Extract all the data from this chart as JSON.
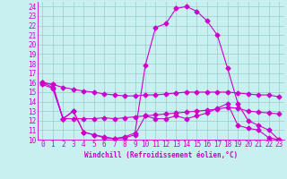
{
  "xlabel": "Windchill (Refroidissement éolien,°C)",
  "xlim": [
    -0.5,
    23.5
  ],
  "ylim": [
    10,
    24.5
  ],
  "yticks": [
    10,
    11,
    12,
    13,
    14,
    15,
    16,
    17,
    18,
    19,
    20,
    21,
    22,
    23,
    24
  ],
  "xticks": [
    0,
    1,
    2,
    3,
    4,
    5,
    6,
    7,
    8,
    9,
    10,
    11,
    12,
    13,
    14,
    15,
    16,
    17,
    18,
    19,
    20,
    21,
    22,
    23
  ],
  "bg_color": "#c8f0f0",
  "line_color": "#cc00cc",
  "grid_color": "#99cccc",
  "line1_x": [
    0,
    1,
    2,
    3,
    4,
    5,
    6,
    7,
    8,
    9,
    10,
    11,
    12,
    13,
    14,
    15,
    16,
    17,
    18,
    19,
    20,
    21,
    22,
    23
  ],
  "line1_y": [
    16.0,
    15.5,
    12.2,
    13.0,
    10.8,
    10.5,
    10.2,
    10.1,
    10.2,
    10.5,
    12.5,
    12.2,
    12.2,
    12.5,
    12.2,
    12.5,
    12.8,
    13.3,
    13.8,
    11.5,
    11.2,
    11.0,
    10.2,
    10.0
  ],
  "line2_x": [
    0,
    1,
    2,
    3,
    4,
    5,
    6,
    7,
    8,
    9,
    10,
    11,
    12,
    13,
    14,
    15,
    16,
    17,
    18,
    19,
    20,
    21,
    22,
    23
  ],
  "line2_y": [
    15.8,
    15.4,
    12.2,
    12.2,
    12.2,
    12.2,
    12.3,
    12.2,
    12.3,
    12.4,
    12.5,
    12.6,
    12.7,
    12.8,
    12.9,
    13.0,
    13.1,
    13.2,
    13.4,
    13.3,
    13.0,
    12.9,
    12.8,
    12.7
  ],
  "line3_x": [
    0,
    1,
    2,
    3,
    4,
    5,
    6,
    7,
    8,
    9,
    10,
    11,
    12,
    13,
    14,
    15,
    16,
    17,
    18,
    19,
    20,
    21,
    22,
    23
  ],
  "line3_y": [
    16.0,
    15.8,
    15.5,
    15.3,
    15.1,
    15.0,
    14.8,
    14.7,
    14.6,
    14.6,
    14.7,
    14.7,
    14.8,
    14.9,
    15.0,
    15.0,
    15.0,
    15.0,
    15.0,
    14.9,
    14.8,
    14.7,
    14.7,
    14.5
  ],
  "line4_x": [
    0,
    1,
    2,
    3,
    4,
    5,
    6,
    7,
    8,
    9,
    10,
    11,
    12,
    13,
    14,
    15,
    16,
    17,
    18,
    19,
    20,
    21,
    22,
    23
  ],
  "line4_y": [
    16.0,
    15.8,
    12.2,
    13.0,
    10.8,
    10.5,
    10.3,
    10.1,
    10.3,
    10.7,
    17.8,
    21.8,
    22.2,
    23.8,
    24.0,
    23.5,
    22.5,
    21.0,
    17.5,
    13.8,
    12.0,
    11.5,
    11.0,
    10.0
  ]
}
